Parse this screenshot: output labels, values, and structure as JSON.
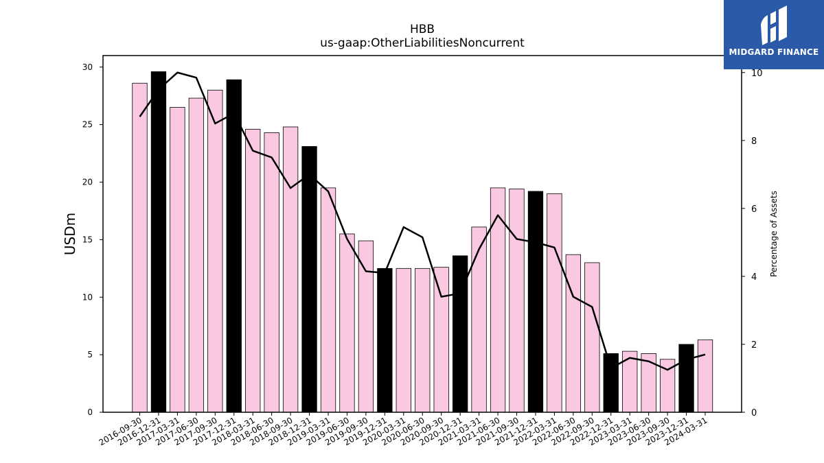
{
  "brand": {
    "name": "MIDGARD FINANCE",
    "icon": "midgard-logo-icon",
    "background": "#2b5aa8"
  },
  "chart_data": {
    "type": "bar",
    "title": "HBB",
    "subtitle": "us-gaap:OtherLiabilitiesNoncurrent",
    "ylabel": "USDm",
    "y2label": "Percentage of Assets",
    "ylim": [
      0,
      31
    ],
    "y2lim": [
      0,
      10.5
    ],
    "yticks": [
      0,
      5,
      10,
      15,
      20,
      25,
      30
    ],
    "y2ticks": [
      0,
      2,
      4,
      6,
      8,
      10
    ],
    "categories": [
      "2016-09-30",
      "2016-12-31",
      "2017-03-31",
      "2017-06-30",
      "2017-09-30",
      "2017-12-31",
      "2018-03-31",
      "2018-06-30",
      "2018-09-30",
      "2018-12-31",
      "2019-03-31",
      "2019-06-30",
      "2019-09-30",
      "2019-12-31",
      "2020-03-31",
      "2020-06-30",
      "2020-09-30",
      "2020-12-31",
      "2021-03-31",
      "2021-06-30",
      "2021-09-30",
      "2021-12-31",
      "2022-03-31",
      "2022-06-30",
      "2022-09-30",
      "2022-12-31",
      "2023-03-31",
      "2023-06-30",
      "2023-09-30",
      "2023-12-31",
      "2024-03-31"
    ],
    "series": [
      {
        "kind": "bar",
        "axis": "left",
        "values": [
          28.6,
          29.6,
          26.5,
          27.3,
          28.0,
          28.9,
          24.6,
          24.3,
          24.8,
          23.1,
          19.5,
          15.5,
          14.9,
          12.5,
          12.5,
          12.5,
          12.6,
          13.6,
          16.1,
          19.5,
          19.4,
          19.2,
          19.0,
          13.7,
          13.0,
          5.1,
          5.3,
          5.1,
          4.6,
          5.9,
          6.3
        ],
        "highlight": [
          false,
          true,
          false,
          false,
          false,
          true,
          false,
          false,
          false,
          true,
          false,
          false,
          false,
          true,
          false,
          false,
          false,
          true,
          false,
          false,
          false,
          true,
          false,
          false,
          false,
          true,
          false,
          false,
          false,
          true,
          false
        ]
      },
      {
        "kind": "line",
        "axis": "right",
        "values": [
          8.7,
          9.5,
          10.0,
          9.85,
          8.5,
          8.8,
          7.7,
          7.5,
          6.6,
          7.0,
          6.5,
          5.1,
          4.15,
          4.1,
          5.45,
          5.15,
          3.4,
          3.5,
          4.8,
          5.8,
          5.1,
          5.0,
          4.85,
          3.4,
          3.1,
          1.3,
          1.6,
          1.5,
          1.25,
          1.55,
          1.7
        ]
      }
    ],
    "colors": {
      "bar": "#fbc8e2",
      "bar_highlight": "#000000",
      "bar_edge": "#000000",
      "line": "#000000"
    },
    "grid": false,
    "legend": "none"
  }
}
